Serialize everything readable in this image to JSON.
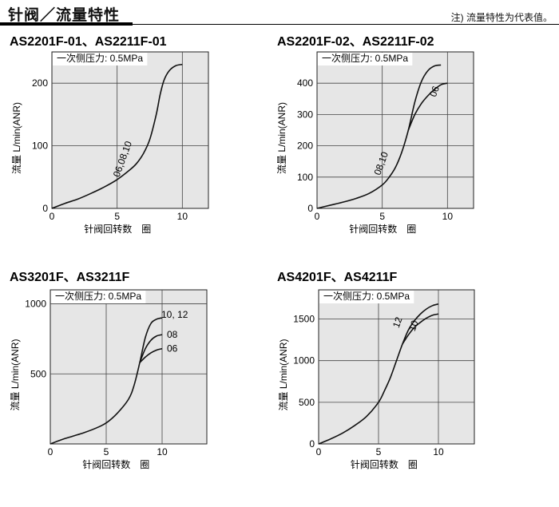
{
  "header": {
    "title": "针阀／流量特性",
    "note": "注) 流量特性为代表值。"
  },
  "chart_data": [
    {
      "type": "line",
      "title": "AS2201F-01、AS2211F-01",
      "xlabel": "针阀回转数　圈",
      "ylabel": "流量 L/min(ANR)",
      "xlim": [
        0,
        12
      ],
      "ylim": [
        0,
        250
      ],
      "xticks": [
        0,
        5,
        10
      ],
      "yticks": [
        0,
        100,
        200
      ],
      "grid": true,
      "annotation": "一次侧压力: 0.5MPa",
      "series": [
        {
          "name": "06,08,10",
          "x": [
            0,
            1,
            2,
            3,
            4,
            5,
            6,
            6.5,
            7,
            7.5,
            8,
            8.3,
            8.6,
            9,
            9.5,
            10
          ],
          "y": [
            0,
            8,
            15,
            24,
            34,
            46,
            62,
            72,
            87,
            110,
            150,
            182,
            205,
            220,
            228,
            230
          ]
        }
      ]
    },
    {
      "type": "line",
      "title": "AS2201F-02、AS2211F-02",
      "xlabel": "针阀回转数　圈",
      "ylabel": "流量 L/min(ANR)",
      "xlim": [
        0,
        12
      ],
      "ylim": [
        0,
        500
      ],
      "xticks": [
        0,
        5,
        10
      ],
      "yticks": [
        0,
        100,
        200,
        300,
        400
      ],
      "grid": true,
      "annotation": "一次侧压力: 0.5MPa",
      "series": [
        {
          "name": "08,10",
          "x": [
            0,
            1,
            2,
            3,
            4,
            5,
            5.5,
            6,
            6.5,
            7,
            7.5,
            8,
            8.5,
            9,
            9.5
          ],
          "y": [
            0,
            10,
            20,
            32,
            48,
            75,
            98,
            130,
            180,
            250,
            340,
            405,
            440,
            455,
            458
          ]
        },
        {
          "name": "06",
          "x": [
            7,
            7.5,
            8,
            8.5,
            9,
            9.5,
            10
          ],
          "y": [
            250,
            300,
            335,
            360,
            380,
            395,
            400
          ]
        }
      ]
    },
    {
      "type": "line",
      "title": "AS3201F、AS3211F",
      "xlabel": "针阀回转数　圈",
      "ylabel": "流量 L/min(ANR)",
      "xlim": [
        0,
        14
      ],
      "ylim": [
        0,
        1100
      ],
      "xticks": [
        0,
        5,
        10
      ],
      "yticks": [
        500,
        1000
      ],
      "grid": true,
      "annotation": "一次侧压力: 0.5MPa",
      "series": [
        {
          "name": "10, 12",
          "x": [
            0,
            1,
            2,
            3,
            4,
            5,
            6,
            7,
            7.5,
            8,
            8.5,
            9,
            9.5,
            10
          ],
          "y": [
            0,
            30,
            55,
            80,
            110,
            150,
            220,
            320,
            420,
            580,
            760,
            860,
            890,
            900
          ]
        },
        {
          "name": "08",
          "x": [
            8,
            8.5,
            9,
            9.5,
            10
          ],
          "y": [
            580,
            680,
            740,
            770,
            780
          ]
        },
        {
          "name": "06",
          "x": [
            8,
            8.5,
            9,
            9.5,
            10
          ],
          "y": [
            580,
            620,
            650,
            670,
            680
          ]
        }
      ]
    },
    {
      "type": "line",
      "title": "AS4201F、AS4211F",
      "xlabel": "针阀回转数　圈",
      "ylabel": "流量 L/min(ANR)",
      "xlim": [
        0,
        13
      ],
      "ylim": [
        0,
        1850
      ],
      "xticks": [
        0,
        5,
        10
      ],
      "yticks": [
        0,
        500,
        1000,
        1500
      ],
      "grid": true,
      "annotation": "一次侧压力: 0.5MPa",
      "series": [
        {
          "name": "12",
          "x": [
            0,
            1,
            2,
            3,
            4,
            5,
            5.5,
            6,
            6.5,
            7,
            7.5,
            8,
            8.5,
            9,
            9.5,
            10
          ],
          "y": [
            0,
            60,
            130,
            220,
            330,
            500,
            640,
            800,
            1000,
            1200,
            1370,
            1480,
            1560,
            1620,
            1660,
            1680
          ]
        },
        {
          "name": "10",
          "x": [
            7,
            7.5,
            8,
            8.5,
            9,
            9.5,
            10
          ],
          "y": [
            1200,
            1310,
            1400,
            1460,
            1510,
            1545,
            1560
          ]
        }
      ]
    }
  ]
}
